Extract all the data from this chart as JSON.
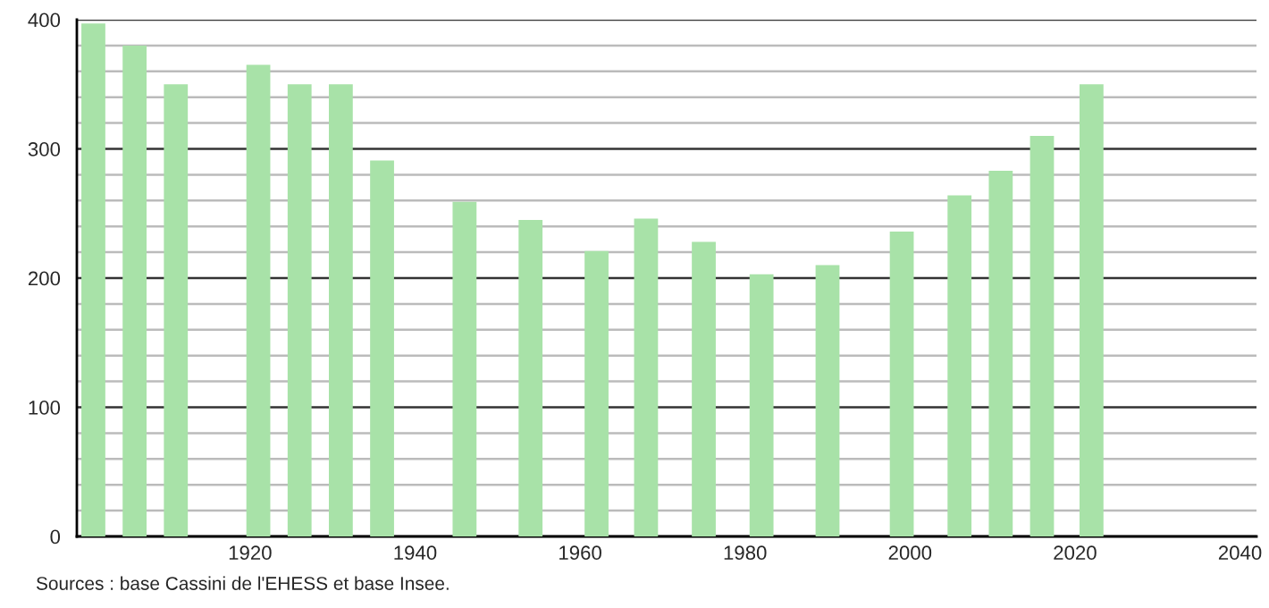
{
  "chart_data": {
    "type": "bar",
    "x": [
      1901,
      1906,
      1911,
      1921,
      1926,
      1931,
      1936,
      1946,
      1954,
      1962,
      1968,
      1975,
      1982,
      1990,
      1999,
      2006,
      2011,
      2016,
      2022
    ],
    "values": [
      397,
      380,
      350,
      365,
      350,
      350,
      291,
      259,
      245,
      221,
      246,
      228,
      203,
      210,
      236,
      264,
      283,
      310,
      350
    ],
    "color": "#a8e2a8",
    "xlim": [
      1899,
      2042
    ],
    "xticks": [
      1920,
      1940,
      1960,
      1980,
      2000,
      2020,
      2040
    ],
    "ylim": [
      0,
      400
    ],
    "yticks": [
      0,
      {
        "value": 20,
        "label": null
      },
      {
        "value": 40,
        "label": null
      },
      {
        "value": 60,
        "label": null
      },
      {
        "value": 80,
        "label": null
      },
      100,
      {
        "value": 120,
        "label": null
      },
      {
        "value": 140,
        "label": null
      },
      {
        "value": 160,
        "label": null
      },
      {
        "value": 180,
        "label": null
      },
      200,
      {
        "value": 220,
        "label": null
      },
      {
        "value": 240,
        "label": null
      },
      {
        "value": 260,
        "label": null
      },
      {
        "value": 280,
        "label": null
      },
      300,
      {
        "value": 320,
        "label": null
      },
      {
        "value": 340,
        "label": null
      },
      {
        "value": 360,
        "label": null
      },
      {
        "value": 380,
        "label": null
      },
      400
    ],
    "grid": "y",
    "annotations": [
      "Sources : base Cassini de l'EHESS et base Insee."
    ]
  }
}
